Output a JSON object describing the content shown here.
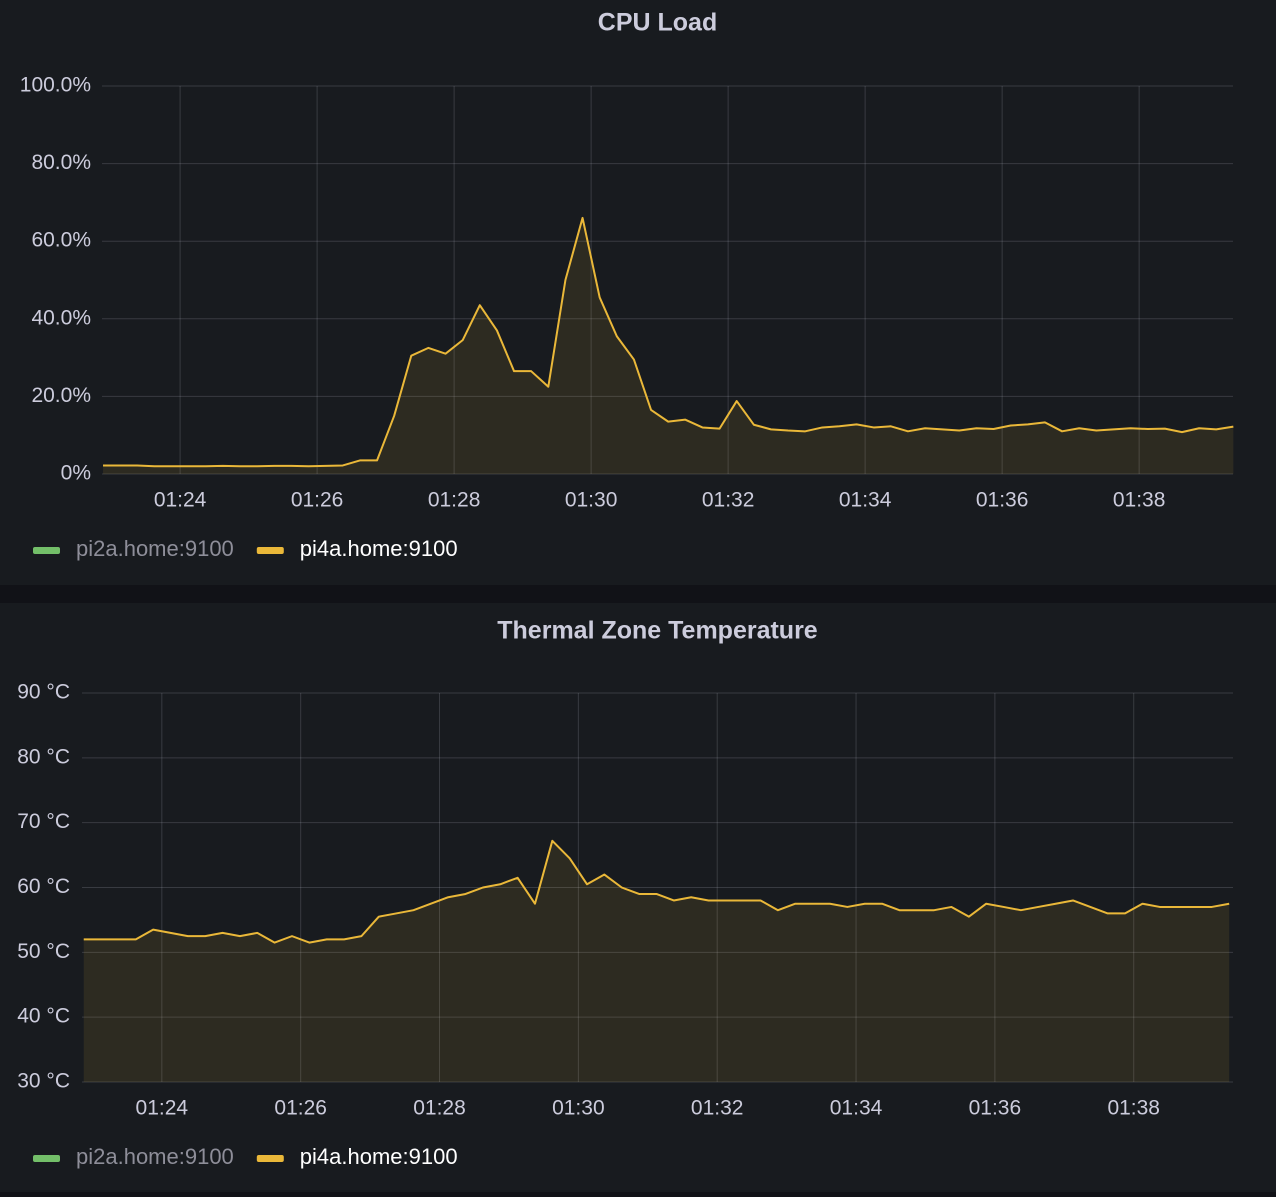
{
  "chart_data": [
    {
      "type": "line",
      "title": "CPU Load",
      "x": [
        82.875,
        83.125,
        83.375,
        83.625,
        83.875,
        84.125,
        84.375,
        84.625,
        84.875,
        85.125,
        85.375,
        85.625,
        85.875,
        86.125,
        86.375,
        86.625,
        86.875,
        87.125,
        87.375,
        87.625,
        87.875,
        88.125,
        88.375,
        88.625,
        88.875,
        89.125,
        89.375,
        89.625,
        89.875,
        90.125,
        90.375,
        90.625,
        90.875,
        91.125,
        91.375,
        91.625,
        91.875,
        92.125,
        92.375,
        92.625,
        92.875,
        93.125,
        93.375,
        93.625,
        93.875,
        94.125,
        94.375,
        94.625,
        94.875,
        95.125,
        95.375,
        95.625,
        95.875,
        96.125,
        96.375,
        96.625,
        96.875,
        97.125,
        97.375,
        97.625,
        97.875,
        98.125,
        98.375,
        98.625,
        98.875,
        99.125,
        99.375
      ],
      "xlim": [
        82.86,
        99.37
      ],
      "xticks": [
        {
          "value": 84,
          "label": "01:24"
        },
        {
          "value": 86,
          "label": "01:26"
        },
        {
          "value": 88,
          "label": "01:28"
        },
        {
          "value": 90,
          "label": "01:30"
        },
        {
          "value": 92,
          "label": "01:32"
        },
        {
          "value": 94,
          "label": "01:34"
        },
        {
          "value": 96,
          "label": "01:36"
        },
        {
          "value": 98,
          "label": "01:38"
        }
      ],
      "ylim": [
        0,
        100
      ],
      "yticks": [
        {
          "value": 0,
          "label": "0%"
        },
        {
          "value": 20,
          "label": "20.0%"
        },
        {
          "value": 40,
          "label": "40.0%"
        },
        {
          "value": 60,
          "label": "60.0%"
        },
        {
          "value": 80,
          "label": "80.0%"
        },
        {
          "value": 100,
          "label": "100.0%"
        }
      ],
      "grid": true,
      "series": [
        {
          "name": "pi2a.home:9100",
          "color": "#73bf69",
          "hidden": true,
          "values": [
            null,
            null,
            null,
            null,
            null,
            null,
            null,
            null,
            null,
            null,
            null,
            null,
            null,
            null,
            null,
            null,
            null,
            null,
            null,
            null,
            null,
            null,
            null,
            null,
            null,
            null,
            null,
            null,
            null,
            null,
            null,
            null,
            null,
            null,
            null,
            null,
            null,
            null,
            null,
            null,
            null,
            null,
            null,
            null,
            null,
            null,
            null,
            null,
            null,
            null,
            null,
            null,
            null,
            null,
            null,
            null,
            null,
            null,
            null,
            null,
            null,
            null,
            null,
            null,
            null,
            null,
            null
          ]
        },
        {
          "name": "pi4a.home:9100",
          "color": "#eab839",
          "values": [
            2.2,
            2.2,
            2.2,
            2,
            2,
            2,
            2,
            2.1,
            2,
            2,
            2.1,
            2.1,
            2,
            2.1,
            2.2,
            3.5,
            3.5,
            15,
            30.5,
            32.5,
            31,
            34.5,
            43.5,
            37,
            26.5,
            26.5,
            22.5,
            50,
            66,
            45.5,
            35.5,
            29.5,
            16.5,
            13.5,
            14,
            12,
            11.7,
            18.8,
            12.7,
            11.5,
            11.2,
            11,
            12,
            12.3,
            12.8,
            12,
            12.3,
            11,
            11.8,
            11.5,
            11.2,
            11.8,
            11.6,
            12.5,
            12.8,
            13.3,
            11,
            11.8,
            11.2,
            11.5,
            11.8,
            11.6,
            11.7,
            10.8,
            11.8,
            11.5,
            12.2
          ]
        }
      ]
    },
    {
      "type": "line",
      "title": "Thermal Zone Temperature",
      "x": [
        82.875,
        83.125,
        83.375,
        83.625,
        83.875,
        84.125,
        84.375,
        84.625,
        84.875,
        85.125,
        85.375,
        85.625,
        85.875,
        86.125,
        86.375,
        86.625,
        86.875,
        87.125,
        87.375,
        87.625,
        87.875,
        88.125,
        88.375,
        88.625,
        88.875,
        89.125,
        89.375,
        89.625,
        89.875,
        90.125,
        90.375,
        90.625,
        90.875,
        91.125,
        91.375,
        91.625,
        91.875,
        92.125,
        92.375,
        92.625,
        92.875,
        93.125,
        93.375,
        93.625,
        93.875,
        94.125,
        94.375,
        94.625,
        94.875,
        95.125,
        95.375,
        95.625,
        95.875,
        96.125,
        96.375,
        96.625,
        96.875,
        97.125,
        97.375,
        97.625,
        97.875,
        98.125,
        98.375,
        98.625,
        98.875,
        99.125,
        99.375
      ],
      "xlim": [
        82.85,
        99.43
      ],
      "xticks": [
        {
          "value": 84,
          "label": "01:24"
        },
        {
          "value": 86,
          "label": "01:26"
        },
        {
          "value": 88,
          "label": "01:28"
        },
        {
          "value": 90,
          "label": "01:30"
        },
        {
          "value": 92,
          "label": "01:32"
        },
        {
          "value": 94,
          "label": "01:34"
        },
        {
          "value": 96,
          "label": "01:36"
        },
        {
          "value": 98,
          "label": "01:38"
        }
      ],
      "ylim": [
        30,
        90
      ],
      "yticks": [
        {
          "value": 30,
          "label": "30 °C"
        },
        {
          "value": 40,
          "label": "40 °C"
        },
        {
          "value": 50,
          "label": "50 °C"
        },
        {
          "value": 60,
          "label": "60 °C"
        },
        {
          "value": 70,
          "label": "70 °C"
        },
        {
          "value": 80,
          "label": "80 °C"
        },
        {
          "value": 90,
          "label": "90 °C"
        }
      ],
      "grid": true,
      "series": [
        {
          "name": "pi2a.home:9100",
          "color": "#73bf69",
          "hidden": true,
          "values": [
            null,
            null,
            null,
            null,
            null,
            null,
            null,
            null,
            null,
            null,
            null,
            null,
            null,
            null,
            null,
            null,
            null,
            null,
            null,
            null,
            null,
            null,
            null,
            null,
            null,
            null,
            null,
            null,
            null,
            null,
            null,
            null,
            null,
            null,
            null,
            null,
            null,
            null,
            null,
            null,
            null,
            null,
            null,
            null,
            null,
            null,
            null,
            null,
            null,
            null,
            null,
            null,
            null,
            null,
            null,
            null,
            null,
            null,
            null,
            null,
            null,
            null,
            null,
            null,
            null,
            null,
            null
          ]
        },
        {
          "name": "pi4a.home:9100",
          "color": "#eab839",
          "values": [
            52,
            52,
            52,
            52,
            53.5,
            53,
            52.5,
            52.5,
            53,
            52.5,
            53,
            51.5,
            52.5,
            51.5,
            52,
            52,
            52.5,
            55.5,
            56,
            56.5,
            57.5,
            58.5,
            59,
            60,
            60.5,
            61.5,
            57.5,
            67.2,
            64.5,
            60.5,
            62,
            60,
            59,
            59,
            58,
            58.5,
            58,
            58,
            58,
            58,
            56.5,
            57.5,
            57.5,
            57.5,
            57,
            57.5,
            57.5,
            56.5,
            56.5,
            56.5,
            57,
            55.5,
            57.5,
            57,
            56.5,
            57,
            57.5,
            58,
            57,
            56,
            56,
            57.5,
            57,
            57,
            57,
            57,
            57.5
          ]
        }
      ]
    }
  ]
}
